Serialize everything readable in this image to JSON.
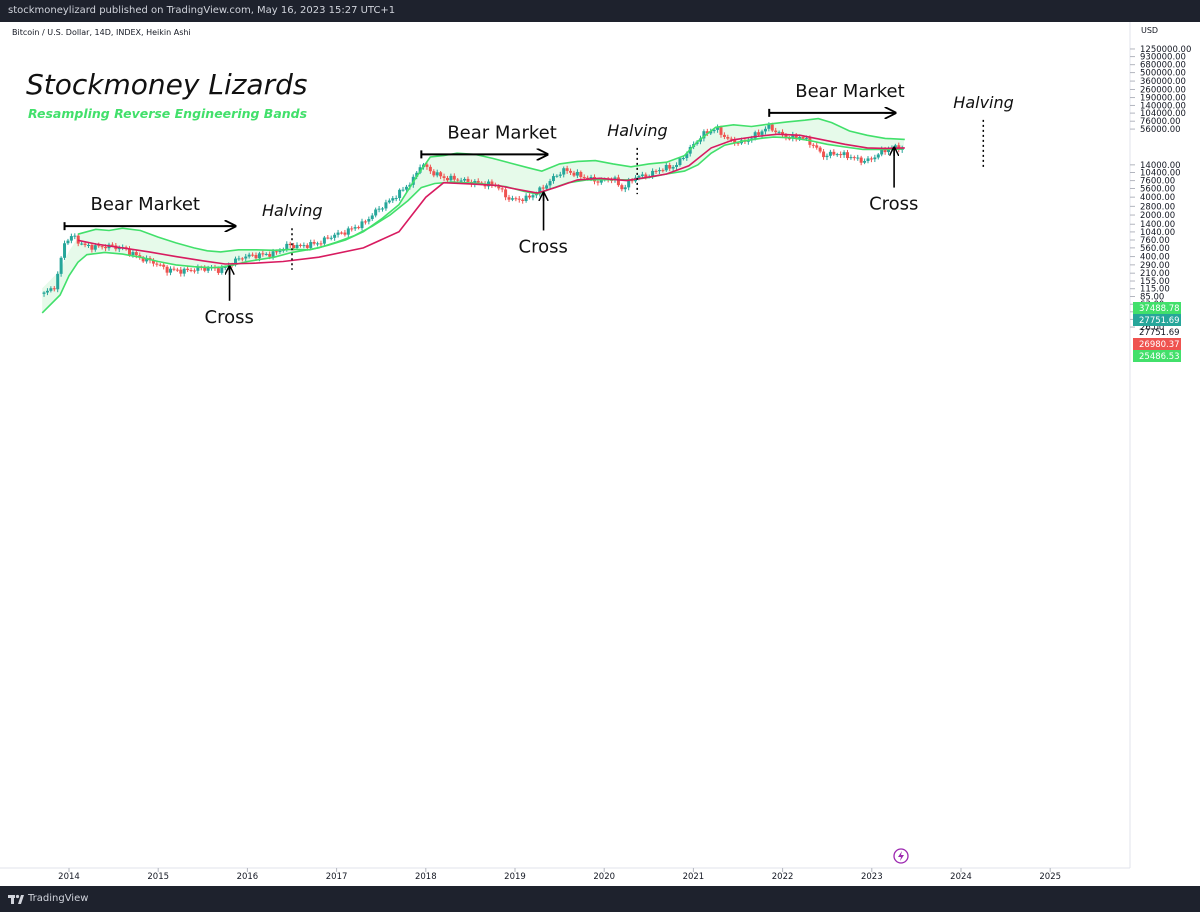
{
  "header": {
    "publish_line": "stockmoneylizard published on TradingView.com, May 16, 2023 15:27 UTC+1"
  },
  "symbol_line": "Bitcoin / U.S. Dollar, 14D, INDEX, Heikin Ashi",
  "brand": {
    "title": "Stockmoney Lizards",
    "subtitle": "Resampling Reverse Engineering Bands"
  },
  "footer": {
    "logo_text": "TradingView"
  },
  "colors": {
    "band_upper": "#42e06b",
    "band_fill": "#e6faea",
    "mid_line": "#d81b60",
    "candle_up": "#26a69a",
    "candle_down": "#ef5350"
  },
  "chart_data": {
    "type": "candlestick",
    "y_scale": "log",
    "currency_label": "USD",
    "x_tick_labels": [
      "2014",
      "2015",
      "2016",
      "2017",
      "2018",
      "2019",
      "2020",
      "2021",
      "2022",
      "2023",
      "2024",
      "2025"
    ],
    "y_tick_labels": [
      "1250000.00",
      "930000.00",
      "680000.00",
      "500000.00",
      "360000.00",
      "260000.00",
      "190000.00",
      "140000.00",
      "104000.00",
      "76000.00",
      "56000.00",
      "14000.00",
      "10400.00",
      "7600.00",
      "5600.00",
      "4000.00",
      "2800.00",
      "2000.00",
      "1400.00",
      "1040.00",
      "760.00",
      "560.00",
      "400.00",
      "290.00",
      "210.00",
      "155.00",
      "115.00",
      "85.00",
      "63.00",
      "47.00",
      "35.00",
      "26.00"
    ],
    "price_badges": [
      {
        "value": "37488.78",
        "color": "#42e06b"
      },
      {
        "value": "27751.69",
        "color": "#26a69a"
      },
      {
        "value": "27751.69",
        "color": ""
      },
      {
        "value": "26980.37",
        "color": "#ef5350"
      },
      {
        "value": "25486.53",
        "color": "#42e06b"
      }
    ],
    "price_path": [
      [
        2013.7,
        90
      ],
      [
        2013.85,
        130
      ],
      [
        2013.95,
        700
      ],
      [
        2014.05,
        900
      ],
      [
        2014.15,
        620
      ],
      [
        2014.3,
        580
      ],
      [
        2014.45,
        600
      ],
      [
        2014.6,
        560
      ],
      [
        2014.8,
        380
      ],
      [
        2014.95,
        320
      ],
      [
        2015.1,
        240
      ],
      [
        2015.3,
        230
      ],
      [
        2015.45,
        250
      ],
      [
        2015.6,
        255
      ],
      [
        2015.7,
        235
      ],
      [
        2015.85,
        330
      ],
      [
        2015.95,
        400
      ],
      [
        2016.1,
        420
      ],
      [
        2016.3,
        450
      ],
      [
        2016.45,
        620
      ],
      [
        2016.6,
        600
      ],
      [
        2016.8,
        680
      ],
      [
        2016.95,
        900
      ],
      [
        2017.1,
        1050
      ],
      [
        2017.3,
        1450
      ],
      [
        2017.45,
        2400
      ],
      [
        2017.6,
        3500
      ],
      [
        2017.75,
        5500
      ],
      [
        2017.85,
        7500
      ],
      [
        2017.95,
        15000
      ],
      [
        2018.05,
        11000
      ],
      [
        2018.2,
        8500
      ],
      [
        2018.35,
        8000
      ],
      [
        2018.5,
        7200
      ],
      [
        2018.65,
        6700
      ],
      [
        2018.8,
        6400
      ],
      [
        2018.9,
        4000
      ],
      [
        2019.0,
        3600
      ],
      [
        2019.15,
        3900
      ],
      [
        2019.3,
        5500
      ],
      [
        2019.45,
        9000
      ],
      [
        2019.55,
        11500
      ],
      [
        2019.7,
        9500
      ],
      [
        2019.85,
        8000
      ],
      [
        2019.95,
        7300
      ],
      [
        2020.1,
        8500
      ],
      [
        2020.2,
        5500
      ],
      [
        2020.35,
        8800
      ],
      [
        2020.5,
        9300
      ],
      [
        2020.6,
        11500
      ],
      [
        2020.8,
        13500
      ],
      [
        2020.95,
        25000
      ],
      [
        2021.1,
        45000
      ],
      [
        2021.25,
        58000
      ],
      [
        2021.4,
        36000
      ],
      [
        2021.55,
        33000
      ],
      [
        2021.7,
        45000
      ],
      [
        2021.85,
        62000
      ],
      [
        2021.95,
        48000
      ],
      [
        2022.05,
        40000
      ],
      [
        2022.2,
        42000
      ],
      [
        2022.35,
        30000
      ],
      [
        2022.45,
        20000
      ],
      [
        2022.6,
        22000
      ],
      [
        2022.75,
        19500
      ],
      [
        2022.88,
        16500
      ],
      [
        2022.98,
        16800
      ],
      [
        2023.08,
        22000
      ],
      [
        2023.2,
        27000
      ],
      [
        2023.37,
        27751.69
      ]
    ],
    "series": [
      {
        "name": "",
        "points": [
          [
            2013.7,
            45
          ],
          [
            2013.9,
            90
          ],
          [
            2014.0,
            190
          ],
          [
            2014.1,
            320
          ],
          [
            2014.2,
            430
          ],
          [
            2014.4,
            470
          ],
          [
            2014.6,
            440
          ],
          [
            2014.8,
            390
          ],
          [
            2015.0,
            330
          ],
          [
            2015.2,
            290
          ],
          [
            2015.4,
            270
          ],
          [
            2015.6,
            260
          ],
          [
            2015.7,
            265
          ],
          [
            2015.85,
            290
          ],
          [
            2016.0,
            330
          ],
          [
            2016.3,
            390
          ],
          [
            2016.5,
            470
          ],
          [
            2016.8,
            560
          ],
          [
            2017.0,
            700
          ],
          [
            2017.2,
            900
          ],
          [
            2017.4,
            1300
          ],
          [
            2017.6,
            2000
          ],
          [
            2017.8,
            3500
          ],
          [
            2017.95,
            5800
          ],
          [
            2018.1,
            6800
          ],
          [
            2018.3,
            7200
          ],
          [
            2018.6,
            6800
          ],
          [
            2018.9,
            6000
          ],
          [
            2019.1,
            5000
          ],
          [
            2019.25,
            4500
          ],
          [
            2019.4,
            5500
          ],
          [
            2019.6,
            7000
          ],
          [
            2019.8,
            7800
          ],
          [
            2020.0,
            7900
          ],
          [
            2020.3,
            7800
          ],
          [
            2020.5,
            8600
          ],
          [
            2020.7,
            9800
          ],
          [
            2020.9,
            11000
          ],
          [
            2021.05,
            14000
          ],
          [
            2021.2,
            22000
          ],
          [
            2021.35,
            30000
          ],
          [
            2021.55,
            35000
          ],
          [
            2021.75,
            39000
          ],
          [
            2021.9,
            41000
          ],
          [
            2022.1,
            40000
          ],
          [
            2022.3,
            36000
          ],
          [
            2022.5,
            31000
          ],
          [
            2022.7,
            28000
          ],
          [
            2022.9,
            25500
          ],
          [
            2023.1,
            25500
          ],
          [
            2023.35,
            26000
          ]
        ]
      },
      {
        "name": "",
        "points": [
          [
            2014.1,
            950
          ],
          [
            2014.3,
            1150
          ],
          [
            2014.45,
            1100
          ],
          [
            2014.6,
            1200
          ],
          [
            2014.8,
            1100
          ],
          [
            2015.0,
            850
          ],
          [
            2015.2,
            680
          ],
          [
            2015.4,
            560
          ],
          [
            2015.55,
            500
          ],
          [
            2015.7,
            480
          ],
          [
            2015.9,
            520
          ],
          [
            2016.1,
            520
          ],
          [
            2016.3,
            510
          ],
          [
            2016.5,
            530
          ],
          [
            2016.7,
            520
          ],
          [
            2016.9,
            620
          ],
          [
            2017.1,
            760
          ],
          [
            2017.3,
            1050
          ],
          [
            2017.5,
            1700
          ],
          [
            2017.7,
            3000
          ],
          [
            2017.9,
            9000
          ],
          [
            2018.05,
            19000
          ],
          [
            2018.2,
            20000
          ],
          [
            2018.35,
            22000
          ],
          [
            2018.55,
            21000
          ],
          [
            2018.75,
            18000
          ],
          [
            2018.95,
            15000
          ],
          [
            2019.15,
            12500
          ],
          [
            2019.3,
            11000
          ],
          [
            2019.5,
            14500
          ],
          [
            2019.7,
            16000
          ],
          [
            2019.9,
            16500
          ],
          [
            2020.1,
            14500
          ],
          [
            2020.3,
            13000
          ],
          [
            2020.5,
            14500
          ],
          [
            2020.7,
            15500
          ],
          [
            2020.9,
            20000
          ],
          [
            2021.05,
            35000
          ],
          [
            2021.25,
            60000
          ],
          [
            2021.45,
            66000
          ],
          [
            2021.65,
            62000
          ],
          [
            2021.85,
            68000
          ],
          [
            2022.05,
            74000
          ],
          [
            2022.25,
            79000
          ],
          [
            2022.4,
            84000
          ],
          [
            2022.55,
            72000
          ],
          [
            2022.75,
            52000
          ],
          [
            2022.95,
            44000
          ],
          [
            2023.15,
            39000
          ],
          [
            2023.37,
            37488.78
          ]
        ]
      },
      {
        "name": "",
        "points": [
          [
            2014.1,
            750
          ],
          [
            2014.3,
            650
          ],
          [
            2014.6,
            560
          ],
          [
            2014.9,
            480
          ],
          [
            2015.2,
            400
          ],
          [
            2015.5,
            340
          ],
          [
            2015.75,
            300
          ],
          [
            2016.1,
            310
          ],
          [
            2016.4,
            330
          ],
          [
            2016.8,
            390
          ],
          [
            2017.3,
            560
          ],
          [
            2017.7,
            1050
          ],
          [
            2018.0,
            4000
          ],
          [
            2018.2,
            7000
          ],
          [
            2018.5,
            6700
          ],
          [
            2018.8,
            6300
          ],
          [
            2019.0,
            5500
          ],
          [
            2019.25,
            4700
          ],
          [
            2019.45,
            5800
          ],
          [
            2019.7,
            7800
          ],
          [
            2019.95,
            8300
          ],
          [
            2020.25,
            7600
          ],
          [
            2020.5,
            8700
          ],
          [
            2020.7,
            9800
          ],
          [
            2020.95,
            13500
          ],
          [
            2021.2,
            27000
          ],
          [
            2021.45,
            37000
          ],
          [
            2021.7,
            42000
          ],
          [
            2021.95,
            46000
          ],
          [
            2022.2,
            44000
          ],
          [
            2022.45,
            37000
          ],
          [
            2022.7,
            31000
          ],
          [
            2022.95,
            27000
          ],
          [
            2023.15,
            26500
          ],
          [
            2023.37,
            26980.37
          ]
        ]
      }
    ],
    "annotations": [
      {
        "text": "Bear Market",
        "kind": "arrow-right",
        "x_from": 2013.95,
        "x_to": 2015.85,
        "price": 1300
      },
      {
        "text": "Bear Market",
        "kind": "arrow-right",
        "x_from": 2017.95,
        "x_to": 2019.35,
        "price": 21000
      },
      {
        "text": "Bear Market",
        "kind": "arrow-right",
        "x_from": 2021.85,
        "x_to": 2023.25,
        "price": 105000
      },
      {
        "text": "Halving",
        "kind": "vline-dotted",
        "x": 2016.5,
        "price_top": 1200,
        "price_bottom": 240
      },
      {
        "text": "Halving",
        "kind": "vline-dotted",
        "x": 2020.37,
        "price_top": 27000,
        "price_bottom": 4500
      },
      {
        "text": "Halving",
        "kind": "vline-dotted",
        "x": 2024.25,
        "price_top": 80000,
        "price_bottom": 12500
      },
      {
        "text": "Cross",
        "kind": "arrow-up",
        "x": 2015.8,
        "price_tip": 265,
        "price_tail": 72
      },
      {
        "text": "Cross",
        "kind": "arrow-up",
        "x": 2019.32,
        "price_tip": 4600,
        "price_tail": 1100
      },
      {
        "text": "Cross",
        "kind": "arrow-up",
        "x": 2023.25,
        "price_tip": 26500,
        "price_tail": 5800
      }
    ],
    "grid": false,
    "legend": "none"
  }
}
